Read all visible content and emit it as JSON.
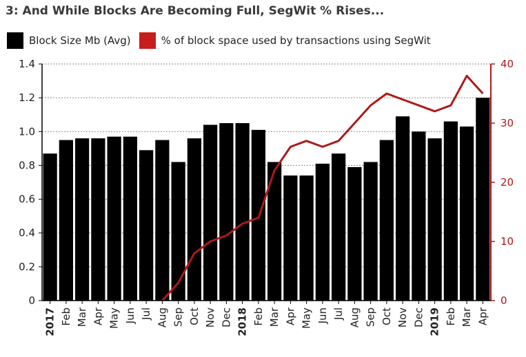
{
  "title": "3: And While Blocks Are Becoming Full, SegWit % Rises...",
  "colors": {
    "bar": "#000000",
    "line": "#b01818",
    "grid": "#888888",
    "right_axis": "#b01818"
  },
  "chart_data": {
    "type": "bar",
    "title": "3: And While Blocks Are Becoming Full, SegWit % Rises...",
    "categories": [
      "2017",
      "Feb",
      "Mar",
      "Apr",
      "May",
      "Jun",
      "Jul",
      "Aug",
      "Sep",
      "Oct",
      "Nov",
      "Dec",
      "2018",
      "Feb",
      "Mar",
      "Apr",
      "May",
      "Jun",
      "Jul",
      "Aug",
      "Sep",
      "Oct",
      "Nov",
      "Dec",
      "2019",
      "Feb",
      "Mar",
      "Apr"
    ],
    "bold_categories": [
      "2017",
      "2018",
      "2019"
    ],
    "series": [
      {
        "name": "Block Size Mb (Avg)",
        "type": "bar",
        "axis": "left",
        "values": [
          0.87,
          0.95,
          0.96,
          0.96,
          0.97,
          0.97,
          0.89,
          0.95,
          0.82,
          0.96,
          1.04,
          1.05,
          1.05,
          1.01,
          0.82,
          0.74,
          0.74,
          0.81,
          0.87,
          0.79,
          0.82,
          0.95,
          1.09,
          1.0,
          0.96,
          1.06,
          1.03,
          1.2
        ]
      },
      {
        "name": "% of block space used by transactions using SegWit",
        "type": "line",
        "axis": "right",
        "values": [
          null,
          null,
          null,
          null,
          null,
          null,
          null,
          0,
          3,
          8,
          10,
          11,
          13,
          14,
          22,
          26,
          27,
          26,
          27,
          30,
          33,
          35,
          34,
          33,
          32,
          33,
          38,
          35
        ]
      }
    ],
    "y_left": {
      "min": 0,
      "max": 1.4,
      "ticks": [
        "0",
        "0.2",
        "0.4",
        "0.6",
        "0.8",
        "1.0",
        "1.2",
        "1.4"
      ]
    },
    "y_right": {
      "min": 0,
      "max": 40,
      "ticks": [
        "0",
        "10",
        "20",
        "30",
        "40"
      ]
    },
    "grid": true,
    "legend_position": "top-left"
  }
}
